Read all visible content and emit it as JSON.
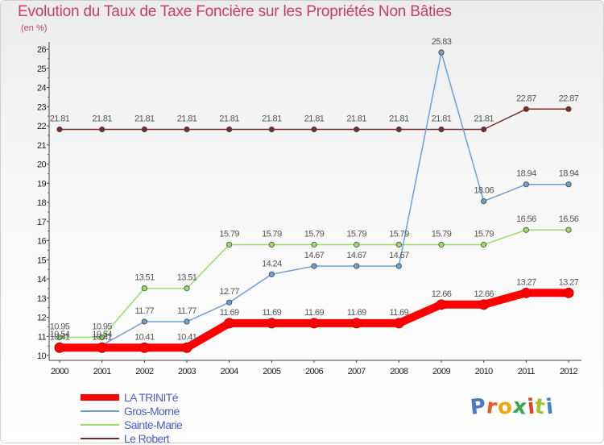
{
  "chart_data": {
    "type": "line",
    "title": "Evolution du Taux de Taxe Foncière sur les Propriétés Non Bâties",
    "unit_label": "(en %)",
    "xlabel": "",
    "ylabel": "",
    "x": [
      "2000",
      "2001",
      "2002",
      "2003",
      "2004",
      "2005",
      "2006",
      "2007",
      "2008",
      "2009",
      "2010",
      "2011",
      "2012"
    ],
    "ylim": [
      10,
      26
    ],
    "yticks": [
      10,
      11,
      12,
      13,
      14,
      15,
      16,
      17,
      18,
      19,
      20,
      21,
      22,
      23,
      24,
      25,
      26
    ],
    "grid": false,
    "legend_position": "bottom-left",
    "series": [
      {
        "name": "Le Robert",
        "color": "#7b2a2a",
        "values": [
          21.81,
          21.81,
          21.81,
          21.81,
          21.81,
          21.81,
          21.81,
          21.81,
          21.81,
          21.81,
          21.81,
          22.87,
          22.87
        ]
      },
      {
        "name": "Sainte-Marie",
        "color": "#99dd66",
        "values": [
          10.95,
          10.95,
          13.51,
          13.51,
          15.79,
          15.79,
          15.79,
          15.79,
          15.79,
          15.79,
          15.79,
          16.56,
          16.56
        ]
      },
      {
        "name": "Gros-Morne",
        "color": "#6f9fd0",
        "values": [
          10.54,
          10.54,
          11.77,
          11.77,
          12.77,
          14.24,
          14.67,
          14.67,
          14.67,
          25.83,
          18.06,
          18.94,
          18.94
        ]
      },
      {
        "name": "LA TRINITé",
        "color": "#ff0000",
        "values": [
          10.41,
          10.41,
          10.41,
          10.41,
          11.69,
          11.69,
          11.69,
          11.69,
          11.69,
          12.66,
          12.66,
          13.27,
          13.27
        ]
      }
    ],
    "legend_order": [
      "LA TRINITé",
      "Gros-Morne",
      "Sainte-Marie",
      "Le Robert"
    ]
  },
  "logo": {
    "text": "Proxiti",
    "colors": [
      "#4e79c4",
      "#e85d1f",
      "#f2a413",
      "#3aa64c",
      "#e0442d",
      "#a0c433",
      "#3b84c9"
    ]
  }
}
